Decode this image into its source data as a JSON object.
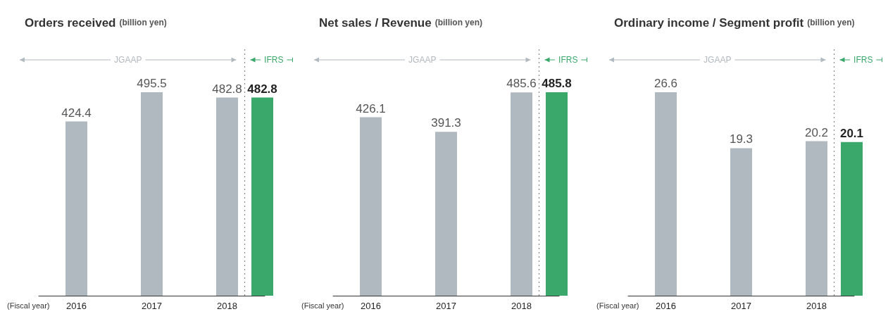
{
  "chart_data": [
    {
      "type": "bar",
      "title": "Orders received",
      "subtitle": "(billion yen)",
      "categories": [
        "2016",
        "2017",
        "2018"
      ],
      "series": [
        {
          "name": "JGAAP",
          "color": "#b1b9c0",
          "values": [
            424.4,
            495.5,
            482.8
          ]
        },
        {
          "name": "IFRS",
          "color": "#3aa86b",
          "values": [
            null,
            null,
            482.8
          ]
        }
      ],
      "data_labels": true,
      "annotations": [
        "(Fiscal year)"
      ],
      "ref_lines": [
        {
          "axis": "x",
          "value": "2018",
          "line_style": "dotted",
          "color": "#888888"
        }
      ]
    },
    {
      "type": "bar",
      "title": "Net sales / Revenue",
      "subtitle": "(billion yen)",
      "categories": [
        "2016",
        "2017",
        "2018"
      ],
      "series": [
        {
          "name": "JGAAP",
          "color": "#b1b9c0",
          "values": [
            426.1,
            391.3,
            485.6
          ]
        },
        {
          "name": "IFRS",
          "color": "#3aa86b",
          "values": [
            null,
            null,
            485.8
          ]
        }
      ],
      "data_labels": true,
      "annotations": [
        "(Fiscal year)"
      ],
      "ref_lines": [
        {
          "axis": "x",
          "value": "2018",
          "line_style": "dotted",
          "color": "#888888"
        }
      ]
    },
    {
      "type": "bar",
      "title": "Ordinary income / Segment profit",
      "subtitle": "(billion yen)",
      "categories": [
        "2016",
        "2017",
        "2018"
      ],
      "series": [
        {
          "name": "JGAAP",
          "color": "#b1b9c0",
          "values": [
            26.6,
            19.3,
            20.2
          ]
        },
        {
          "name": "IFRS",
          "color": "#3aa86b",
          "values": [
            null,
            null,
            20.1
          ]
        }
      ],
      "data_labels": true,
      "annotations": [
        "(Fiscal year)"
      ],
      "ref_lines": [
        {
          "axis": "x",
          "value": "2018",
          "line_style": "dotted",
          "color": "#888888"
        }
      ]
    }
  ]
}
